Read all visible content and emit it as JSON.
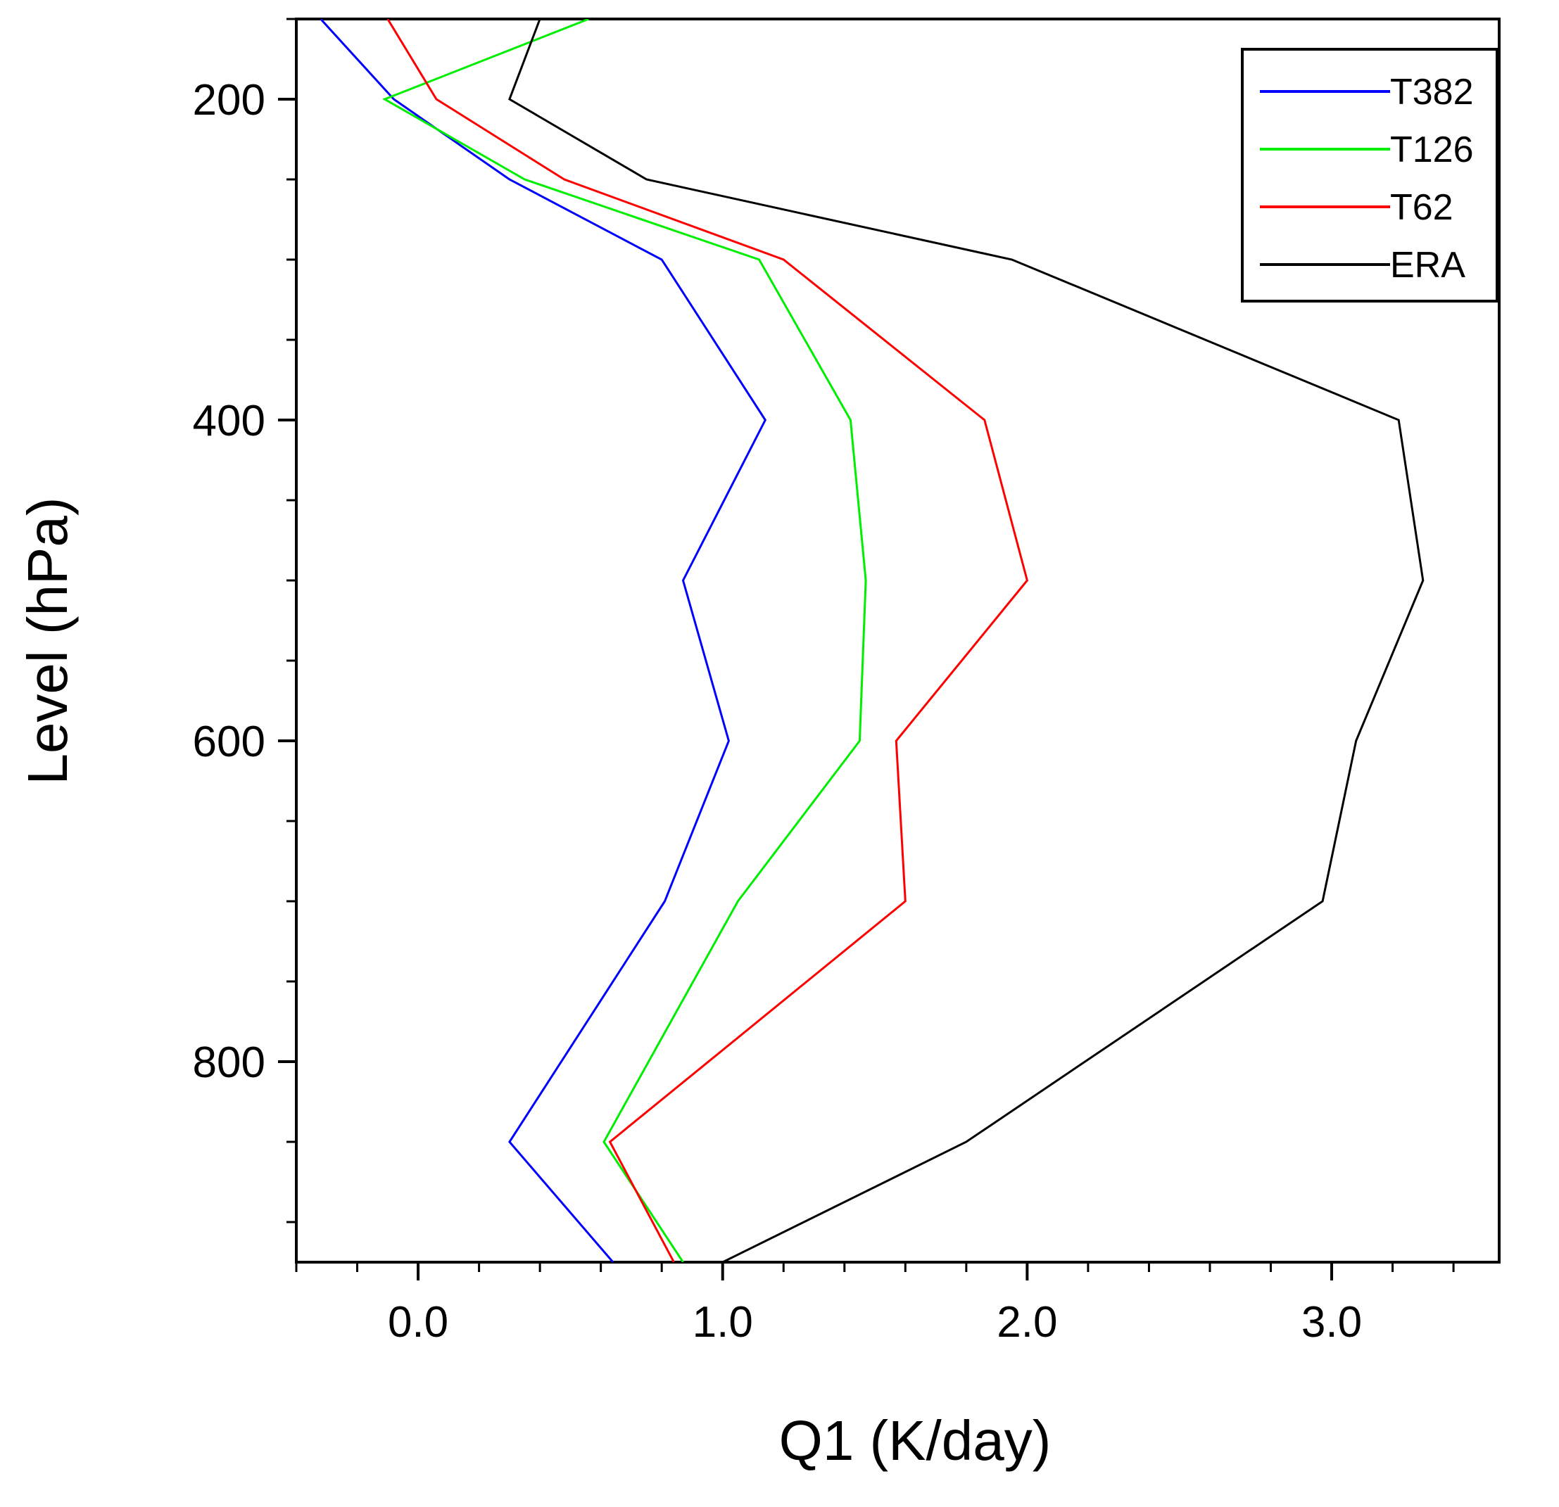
{
  "chart_data": {
    "type": "line",
    "xlabel": "Q1 (K/day)",
    "ylabel": "Level (hPa)",
    "xlim": [
      -0.4,
      3.55
    ],
    "ylim": [
      150,
      925
    ],
    "y_inverted": true,
    "xticks": [
      0.0,
      1.0,
      2.0,
      3.0
    ],
    "xtick_labels": [
      "0.0",
      "1.0",
      "2.0",
      "3.0"
    ],
    "yticks": [
      200,
      400,
      600,
      800
    ],
    "ytick_labels": [
      "200",
      "400",
      "600",
      "800"
    ],
    "x_minor_step": 0.2,
    "y_minor_step": 50,
    "grid": false,
    "legend_position": "top-right",
    "series": [
      {
        "name": "T382",
        "color": "#0000ff",
        "points": [
          [
            -0.32,
            150
          ],
          [
            -0.08,
            200
          ],
          [
            0.3,
            250
          ],
          [
            0.8,
            300
          ],
          [
            1.14,
            400
          ],
          [
            0.87,
            500
          ],
          [
            1.02,
            600
          ],
          [
            0.81,
            700
          ],
          [
            0.3,
            850
          ],
          [
            0.64,
            925
          ]
        ]
      },
      {
        "name": "T126",
        "color": "#00ee00",
        "points": [
          [
            0.56,
            150
          ],
          [
            -0.11,
            200
          ],
          [
            0.35,
            250
          ],
          [
            1.12,
            300
          ],
          [
            1.42,
            400
          ],
          [
            1.47,
            500
          ],
          [
            1.45,
            600
          ],
          [
            1.05,
            700
          ],
          [
            0.61,
            850
          ],
          [
            0.87,
            925
          ]
        ]
      },
      {
        "name": "T62",
        "color": "#ff0000",
        "points": [
          [
            -0.1,
            150
          ],
          [
            0.06,
            200
          ],
          [
            0.48,
            250
          ],
          [
            1.2,
            300
          ],
          [
            1.86,
            400
          ],
          [
            2.0,
            500
          ],
          [
            1.57,
            600
          ],
          [
            1.6,
            700
          ],
          [
            0.63,
            850
          ],
          [
            0.84,
            925
          ]
        ]
      },
      {
        "name": "ERA",
        "color": "#000000",
        "points": [
          [
            0.4,
            150
          ],
          [
            0.3,
            200
          ],
          [
            0.75,
            250
          ],
          [
            1.95,
            300
          ],
          [
            3.22,
            400
          ],
          [
            3.3,
            500
          ],
          [
            3.08,
            600
          ],
          [
            2.97,
            700
          ],
          [
            1.8,
            850
          ],
          [
            1.0,
            925
          ]
        ]
      }
    ]
  }
}
